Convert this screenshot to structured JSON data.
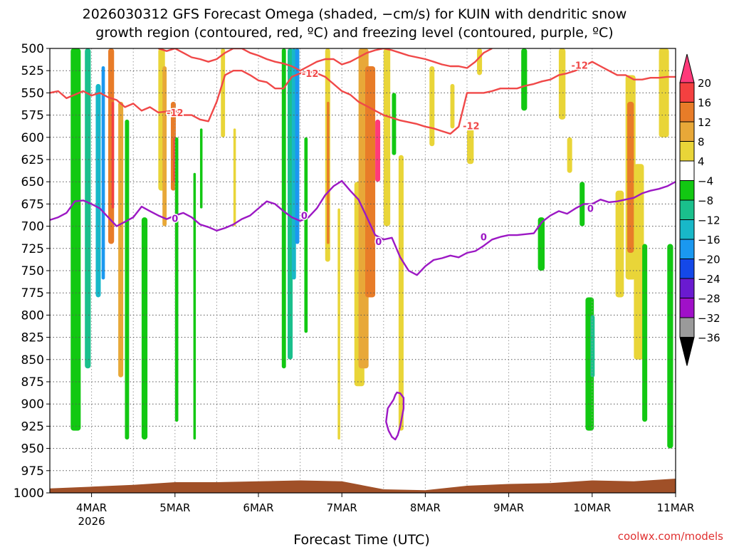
{
  "chart_data": {
    "type": "heatmap",
    "title_lines": [
      "2026030312 GFS Forecast Omega (shaded, −cm/s) for KUIN with dendritic snow",
      "growth region (contoured, red, ºC) and freezing level (contoured, purple, ºC)"
    ],
    "xlabel": "Forecast Time (UTC)",
    "ylabel": "",
    "x_ticks": [
      "4MAR",
      "5MAR",
      "6MAR",
      "7MAR",
      "8MAR",
      "9MAR",
      "10MAR",
      "11MAR"
    ],
    "x_sub_label": "2026",
    "x_range_days": [
      3.5,
      11.0
    ],
    "y_ticks": [
      500,
      525,
      550,
      575,
      600,
      625,
      650,
      675,
      700,
      725,
      750,
      775,
      800,
      825,
      850,
      875,
      900,
      925,
      950,
      975,
      1000
    ],
    "y_range": [
      500,
      1000
    ],
    "y_scale": "linear (pressure, hPa, inverted)",
    "grid": true,
    "colorbar": {
      "position": "right",
      "labels": [
        "20",
        "16",
        "12",
        "8",
        "4",
        "−4",
        "−8",
        "−12",
        "−16",
        "−20",
        "−24",
        "−28",
        "−32",
        "−36"
      ],
      "colors": [
        "#ff3a7a",
        "#f44040",
        "#e87c28",
        "#e8a838",
        "#e9d538",
        "#ffffff",
        "#12c812",
        "#1ac08c",
        "#18b8c8",
        "#1a98f0",
        "#1448e8",
        "#6a1ad0",
        "#a010c8",
        "#9a9a9a",
        "#000000"
      ]
    },
    "shaded_regions": [
      {
        "x": 3.75,
        "w": 0.12,
        "p_top": 500,
        "p_bot": 930,
        "value": -8
      },
      {
        "x": 3.92,
        "w": 0.07,
        "p_top": 500,
        "p_bot": 860,
        "value": -12
      },
      {
        "x": 4.05,
        "w": 0.06,
        "p_top": 540,
        "p_bot": 780,
        "value": -16
      },
      {
        "x": 4.12,
        "w": 0.04,
        "p_top": 520,
        "p_bot": 760,
        "value": -20
      },
      {
        "x": 4.2,
        "w": 0.07,
        "p_top": 500,
        "p_bot": 720,
        "value": 12
      },
      {
        "x": 4.24,
        "w": 0.03,
        "p_top": 560,
        "p_bot": 680,
        "value": 16
      },
      {
        "x": 4.32,
        "w": 0.06,
        "p_top": 560,
        "p_bot": 870,
        "value": 8
      },
      {
        "x": 4.4,
        "w": 0.05,
        "p_top": 580,
        "p_bot": 940,
        "value": -8
      },
      {
        "x": 4.6,
        "w": 0.07,
        "p_top": 690,
        "p_bot": 940,
        "value": -8
      },
      {
        "x": 4.8,
        "w": 0.08,
        "p_top": 500,
        "p_bot": 660,
        "value": 4
      },
      {
        "x": 4.85,
        "w": 0.05,
        "p_top": 520,
        "p_bot": 700,
        "value": 8
      },
      {
        "x": 4.95,
        "w": 0.06,
        "p_top": 560,
        "p_bot": 660,
        "value": 12
      },
      {
        "x": 4.98,
        "w": 0.03,
        "p_top": 600,
        "p_bot": 650,
        "value": 16
      },
      {
        "x": 5.0,
        "w": 0.04,
        "p_top": 600,
        "p_bot": 920,
        "value": -8
      },
      {
        "x": 5.22,
        "w": 0.03,
        "p_top": 640,
        "p_bot": 940,
        "value": -8
      },
      {
        "x": 5.3,
        "w": 0.03,
        "p_top": 590,
        "p_bot": 680,
        "value": -8
      },
      {
        "x": 5.55,
        "w": 0.05,
        "p_top": 500,
        "p_bot": 600,
        "value": 4
      },
      {
        "x": 5.7,
        "w": 0.03,
        "p_top": 590,
        "p_bot": 700,
        "value": 4
      },
      {
        "x": 6.28,
        "w": 0.05,
        "p_top": 500,
        "p_bot": 860,
        "value": -8
      },
      {
        "x": 6.35,
        "w": 0.06,
        "p_top": 500,
        "p_bot": 850,
        "value": -12
      },
      {
        "x": 6.4,
        "w": 0.05,
        "p_top": 500,
        "p_bot": 760,
        "value": -16
      },
      {
        "x": 6.44,
        "w": 0.05,
        "p_top": 500,
        "p_bot": 720,
        "value": -20
      },
      {
        "x": 6.55,
        "w": 0.04,
        "p_top": 600,
        "p_bot": 820,
        "value": -8
      },
      {
        "x": 6.8,
        "w": 0.06,
        "p_top": 500,
        "p_bot": 740,
        "value": 4
      },
      {
        "x": 6.82,
        "w": 0.03,
        "p_top": 560,
        "p_bot": 720,
        "value": 12
      },
      {
        "x": 6.95,
        "w": 0.03,
        "p_top": 680,
        "p_bot": 940,
        "value": 4
      },
      {
        "x": 7.15,
        "w": 0.12,
        "p_top": 650,
        "p_bot": 880,
        "value": 4
      },
      {
        "x": 7.2,
        "w": 0.12,
        "p_top": 500,
        "p_bot": 860,
        "value": 8
      },
      {
        "x": 7.28,
        "w": 0.12,
        "p_top": 520,
        "p_bot": 780,
        "value": 12
      },
      {
        "x": 7.4,
        "w": 0.06,
        "p_top": 580,
        "p_bot": 650,
        "value": 20
      },
      {
        "x": 7.5,
        "w": 0.08,
        "p_top": 500,
        "p_bot": 700,
        "value": 4
      },
      {
        "x": 7.6,
        "w": 0.05,
        "p_top": 550,
        "p_bot": 620,
        "value": -8
      },
      {
        "x": 7.68,
        "w": 0.06,
        "p_top": 620,
        "p_bot": 930,
        "value": 4
      },
      {
        "x": 8.05,
        "w": 0.06,
        "p_top": 520,
        "p_bot": 610,
        "value": 4
      },
      {
        "x": 8.3,
        "w": 0.05,
        "p_top": 540,
        "p_bot": 590,
        "value": 4
      },
      {
        "x": 8.5,
        "w": 0.08,
        "p_top": 590,
        "p_bot": 630,
        "value": 4
      },
      {
        "x": 8.62,
        "w": 0.06,
        "p_top": 500,
        "p_bot": 530,
        "value": 4
      },
      {
        "x": 9.15,
        "w": 0.07,
        "p_top": 500,
        "p_bot": 570,
        "value": -8
      },
      {
        "x": 9.35,
        "w": 0.08,
        "p_top": 690,
        "p_bot": 750,
        "value": -8
      },
      {
        "x": 9.6,
        "w": 0.08,
        "p_top": 500,
        "p_bot": 580,
        "value": 4
      },
      {
        "x": 9.7,
        "w": 0.06,
        "p_top": 600,
        "p_bot": 640,
        "value": 4
      },
      {
        "x": 9.85,
        "w": 0.06,
        "p_top": 650,
        "p_bot": 700,
        "value": -8
      },
      {
        "x": 9.92,
        "w": 0.1,
        "p_top": 780,
        "p_bot": 930,
        "value": -8
      },
      {
        "x": 9.98,
        "w": 0.05,
        "p_top": 800,
        "p_bot": 870,
        "value": -12
      },
      {
        "x": 10.28,
        "w": 0.1,
        "p_top": 660,
        "p_bot": 780,
        "value": 4
      },
      {
        "x": 10.4,
        "w": 0.12,
        "p_top": 530,
        "p_bot": 760,
        "value": 4
      },
      {
        "x": 10.42,
        "w": 0.08,
        "p_top": 560,
        "p_bot": 730,
        "value": 12
      },
      {
        "x": 10.5,
        "w": 0.12,
        "p_top": 630,
        "p_bot": 850,
        "value": 4
      },
      {
        "x": 10.6,
        "w": 0.06,
        "p_top": 720,
        "p_bot": 920,
        "value": -8
      },
      {
        "x": 10.8,
        "w": 0.12,
        "p_top": 500,
        "p_bot": 600,
        "value": 4
      },
      {
        "x": 10.9,
        "w": 0.07,
        "p_top": 720,
        "p_bot": 950,
        "value": -8
      }
    ],
    "contours": [
      {
        "label": "-12",
        "color": "#f04848",
        "label_points": [
          [
            5.0,
            572
          ],
          [
            6.62,
            528
          ],
          [
            8.55,
            587
          ],
          [
            9.85,
            519
          ]
        ],
        "x": [
          3.5,
          3.6,
          3.7,
          3.8,
          3.9,
          4.0,
          4.1,
          4.2,
          4.3,
          4.4,
          4.5,
          4.6,
          4.7,
          4.8,
          4.9,
          5.0,
          5.1,
          5.2,
          5.3,
          5.4,
          5.5,
          5.6,
          5.7,
          5.8,
          5.9,
          6.0,
          6.1,
          6.2,
          6.3,
          6.4,
          6.5,
          6.6,
          6.7,
          6.8,
          6.9,
          7.0,
          7.1,
          7.2,
          7.3,
          7.4,
          7.5,
          7.6,
          7.7,
          7.8,
          7.9,
          8.0,
          8.1,
          8.2,
          8.3,
          8.4,
          8.5,
          8.6,
          8.7,
          8.8,
          8.9,
          9.0,
          9.1,
          9.2,
          9.3,
          9.4,
          9.5,
          9.6,
          9.7,
          9.8,
          9.9,
          10.0,
          10.1,
          10.2,
          10.3,
          10.4,
          10.5,
          10.6,
          10.7,
          10.8,
          10.9,
          11.0
        ],
        "p": [
          550,
          548,
          556,
          552,
          548,
          553,
          550,
          555,
          558,
          566,
          562,
          570,
          566,
          572,
          571,
          570,
          575,
          575,
          580,
          582,
          560,
          530,
          525,
          525,
          530,
          536,
          538,
          545,
          545,
          532,
          528,
          526,
          528,
          532,
          540,
          548,
          552,
          560,
          565,
          570,
          575,
          578,
          581,
          583,
          585,
          588,
          590,
          593,
          596,
          588,
          550,
          550,
          550,
          548,
          545,
          545,
          545,
          542,
          540,
          537,
          535,
          530,
          528,
          525,
          520,
          515,
          520,
          525,
          530,
          530,
          535,
          535,
          533,
          533,
          532,
          532
        ]
      },
      {
        "label": "-12",
        "color": "#f04848",
        "label_points": [],
        "x": [
          4.8,
          4.9,
          5.0,
          5.1,
          5.2,
          5.3,
          5.4,
          5.5,
          5.6,
          5.7,
          5.8,
          5.9,
          6.0,
          6.1,
          6.2,
          6.3,
          6.4,
          6.5,
          6.6,
          6.7,
          6.8,
          6.9,
          7.0,
          7.1,
          7.2,
          7.3,
          7.4,
          7.5,
          7.6,
          7.7,
          7.8,
          7.9,
          8.0,
          8.1,
          8.2,
          8.3,
          8.4,
          8.5,
          8.6,
          8.7,
          8.8
        ],
        "p": [
          500,
          503,
          500,
          505,
          510,
          512,
          515,
          512,
          505,
          500,
          500,
          505,
          508,
          512,
          515,
          517,
          520,
          525,
          520,
          515,
          512,
          512,
          518,
          515,
          510,
          505,
          502,
          500,
          502,
          505,
          508,
          510,
          512,
          515,
          518,
          520,
          520,
          522,
          515,
          505,
          500
        ]
      },
      {
        "label": "0",
        "color": "#9c18c4",
        "label_points": [
          [
            5.0,
            691
          ],
          [
            6.55,
            688
          ],
          [
            7.44,
            717
          ],
          [
            8.7,
            712
          ],
          [
            9.98,
            680
          ]
        ],
        "x": [
          3.5,
          3.6,
          3.7,
          3.8,
          3.9,
          4.0,
          4.1,
          4.2,
          4.3,
          4.4,
          4.5,
          4.6,
          4.7,
          4.8,
          4.9,
          5.0,
          5.1,
          5.2,
          5.3,
          5.4,
          5.5,
          5.6,
          5.7,
          5.8,
          5.9,
          6.0,
          6.1,
          6.2,
          6.3,
          6.4,
          6.5,
          6.6,
          6.7,
          6.8,
          6.9,
          7.0,
          7.1,
          7.2,
          7.3,
          7.4,
          7.5,
          7.6,
          7.7,
          7.8,
          7.9,
          8.0,
          8.1,
          8.2,
          8.3,
          8.4,
          8.5,
          8.6,
          8.7,
          8.8,
          8.9,
          9.0,
          9.1,
          9.2,
          9.3,
          9.4,
          9.5,
          9.6,
          9.7,
          9.8,
          9.9,
          10.0,
          10.1,
          10.2,
          10.3,
          10.4,
          10.5,
          10.6,
          10.7,
          10.8,
          10.9,
          11.0
        ],
        "p": [
          693,
          690,
          685,
          672,
          671,
          675,
          680,
          690,
          700,
          695,
          690,
          678,
          683,
          688,
          692,
          688,
          685,
          690,
          698,
          701,
          705,
          702,
          698,
          692,
          688,
          680,
          672,
          675,
          683,
          690,
          694,
          690,
          680,
          665,
          655,
          649,
          660,
          670,
          690,
          710,
          715,
          713,
          735,
          750,
          755,
          745,
          738,
          736,
          733,
          735,
          730,
          728,
          722,
          715,
          712,
          710,
          710,
          709,
          708,
          695,
          688,
          683,
          686,
          680,
          675,
          675,
          670,
          673,
          672,
          670,
          668,
          663,
          660,
          658,
          655,
          650
        ]
      },
      {
        "label": "",
        "color": "#9c18c4",
        "label_points": [],
        "x": [
          7.62,
          7.55,
          7.53,
          7.56,
          7.6,
          7.64,
          7.67,
          7.7,
          7.72,
          7.74,
          7.74,
          7.7,
          7.66,
          7.64,
          7.62
        ],
        "p": [
          895,
          905,
          920,
          930,
          937,
          940,
          935,
          925,
          915,
          905,
          893,
          888,
          887,
          890,
          895
        ]
      }
    ],
    "terrain": {
      "color": "#a05028",
      "x": [
        3.5,
        4.0,
        4.5,
        5.0,
        5.5,
        6.0,
        6.5,
        7.0,
        7.5,
        8.0,
        8.5,
        9.0,
        9.5,
        10.0,
        10.5,
        11.0
      ],
      "p": [
        995,
        993,
        991,
        988,
        988,
        987,
        986,
        987,
        996,
        997,
        992,
        990,
        989,
        986,
        987,
        984
      ]
    }
  },
  "footer": {
    "credit": "coolwx.com/models"
  }
}
